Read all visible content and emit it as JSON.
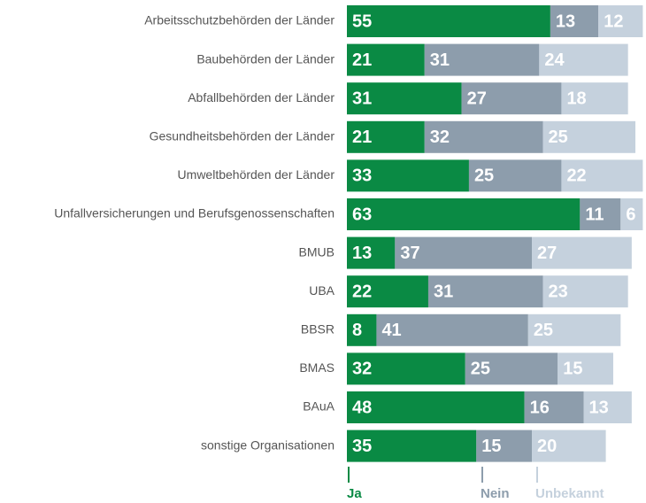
{
  "chart_data": {
    "type": "stacked-bar-horizontal",
    "categories": [
      "Arbeitsschutzbehörden der Länder",
      "Baubehörden der Länder",
      "Abfallbehörden der Länder",
      "Gesundheitsbehörden der Länder",
      "Umweltbehörden der Länder",
      "Unfallversicherungen und Berufsgenossenschaften",
      "BMUB",
      "UBA",
      "BBSR",
      "BMAS",
      "BAuA",
      "sonstige Organisationen"
    ],
    "series": [
      {
        "name": "Ja",
        "color": "#0a8a44",
        "values": [
          55,
          21,
          31,
          21,
          33,
          63,
          13,
          22,
          8,
          32,
          48,
          35
        ]
      },
      {
        "name": "Nein",
        "color": "#8d9dac",
        "values": [
          13,
          31,
          27,
          32,
          25,
          11,
          37,
          31,
          41,
          25,
          16,
          15
        ]
      },
      {
        "name": "Unbekannt",
        "color": "#c5d1dd",
        "values": [
          12,
          24,
          18,
          25,
          22,
          6,
          27,
          23,
          25,
          15,
          13,
          20
        ]
      }
    ]
  }
}
